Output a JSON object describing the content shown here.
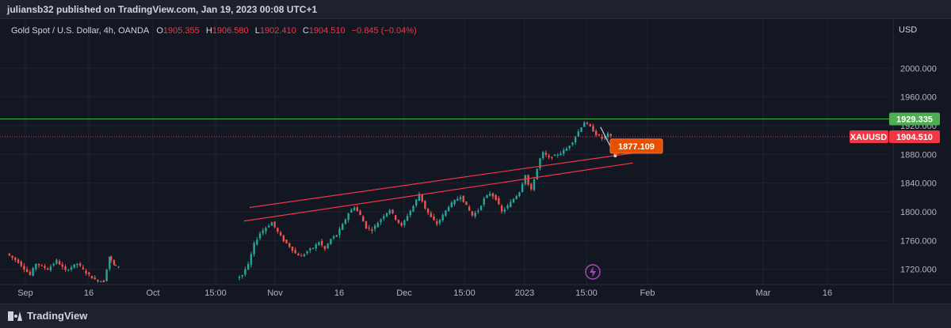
{
  "header": {
    "publisher_line": "juliansb32 published on TradingView.com, Jan 19, 2023 00:08 UTC+1"
  },
  "legend": {
    "symbol": "Gold Spot / U.S. Dollar, 4h, OANDA",
    "open_label": "O",
    "open_value": "1905.355",
    "high_label": "H",
    "high_value": "1906.580",
    "low_label": "L",
    "low_value": "1902.410",
    "close_label": "C",
    "close_value": "1904.510",
    "change": "−0.845 (−0.04%)"
  },
  "axis": {
    "currency": "USD",
    "price_ticks": [
      "2000.000",
      "1960.000",
      "1920.000",
      "1880.000",
      "1840.000",
      "1800.000",
      "1760.000",
      "1720.000"
    ],
    "time_labels": [
      "Sep",
      "16",
      "Oct",
      "15:00",
      "Nov",
      "16",
      "Dec",
      "15:00",
      "2023",
      "15:00",
      "Feb",
      "Mar",
      "16"
    ]
  },
  "tags": {
    "level_price": "1929.335",
    "symbol_tag": "XAUUSD",
    "last_price": "1904.510",
    "callout_price": "1877.109"
  },
  "footer": {
    "brand": "TradingView"
  },
  "colors": {
    "up": "#26a69a",
    "down": "#ef5350",
    "level_line": "#4caf50",
    "channel": "#f23645",
    "callout": "#e65100",
    "background": "#131722"
  },
  "icons": {
    "lightning": "lightning-icon",
    "brand": "tradingview-logo-icon"
  },
  "chart_data": {
    "type": "candlestick",
    "symbol": "XAUUSD",
    "timeframe": "4h",
    "y_range": [
      1700,
      2020
    ],
    "path": [
      [
        0,
        1742
      ],
      [
        4,
        1730
      ],
      [
        8,
        1712
      ],
      [
        10,
        1728
      ],
      [
        14,
        1720
      ],
      [
        17,
        1732
      ],
      [
        20,
        1718
      ],
      [
        24,
        1728
      ],
      [
        27,
        1715
      ],
      [
        30,
        1705
      ],
      [
        33,
        1703
      ],
      [
        34.5,
        1738
      ],
      [
        36,
        1726
      ],
      [
        38,
        1724
      ],
      [
        78,
        1708
      ],
      [
        80,
        1712
      ],
      [
        81,
        1720
      ],
      [
        82,
        1726
      ],
      [
        84,
        1755
      ],
      [
        86,
        1770
      ],
      [
        88,
        1778
      ],
      [
        90,
        1785
      ],
      [
        92,
        1772
      ],
      [
        94,
        1760
      ],
      [
        96,
        1752
      ],
      [
        98,
        1742
      ],
      [
        100,
        1738
      ],
      [
        102,
        1745
      ],
      [
        104,
        1750
      ],
      [
        106,
        1758
      ],
      [
        108,
        1748
      ],
      [
        110,
        1762
      ],
      [
        112,
        1768
      ],
      [
        114,
        1782
      ],
      [
        116,
        1798
      ],
      [
        118,
        1807
      ],
      [
        120,
        1795
      ],
      [
        122,
        1778
      ],
      [
        124,
        1775
      ],
      [
        126,
        1785
      ],
      [
        128,
        1795
      ],
      [
        130,
        1803
      ],
      [
        132,
        1790
      ],
      [
        134,
        1780
      ],
      [
        136,
        1795
      ],
      [
        138,
        1808
      ],
      [
        140,
        1825
      ],
      [
        142,
        1805
      ],
      [
        144,
        1792
      ],
      [
        146,
        1783
      ],
      [
        148,
        1795
      ],
      [
        150,
        1808
      ],
      [
        152,
        1815
      ],
      [
        154,
        1822
      ],
      [
        156,
        1808
      ],
      [
        158,
        1795
      ],
      [
        160,
        1802
      ],
      [
        162,
        1818
      ],
      [
        164,
        1826
      ],
      [
        166,
        1818
      ],
      [
        168,
        1800
      ],
      [
        170,
        1808
      ],
      [
        172,
        1818
      ],
      [
        174,
        1828
      ],
      [
        176,
        1852
      ],
      [
        177,
        1838
      ],
      [
        178,
        1830
      ],
      [
        179,
        1846
      ],
      [
        180,
        1860
      ],
      [
        181,
        1874
      ],
      [
        182,
        1882
      ],
      [
        184,
        1875
      ],
      [
        186,
        1878
      ],
      [
        188,
        1882
      ],
      [
        190,
        1888
      ],
      [
        192,
        1898
      ],
      [
        194,
        1912
      ],
      [
        196,
        1925
      ],
      [
        198,
        1918
      ],
      [
        200,
        1908
      ],
      [
        202,
        1902
      ],
      [
        204,
        1908
      ],
      [
        205,
        1904.51
      ]
    ],
    "horizontal_levels": [
      {
        "price": 1929.335,
        "style": "solid",
        "color": "#4caf50"
      },
      {
        "price": 1904.51,
        "style": "dotted",
        "color": "#f23645"
      }
    ],
    "channel_lines": [
      {
        "from": [
          82,
          1806
        ],
        "to": [
          214,
          1883
        ]
      },
      {
        "from": [
          80,
          1787
        ],
        "to": [
          212,
          1868
        ]
      }
    ],
    "arrow": {
      "from": [
        201,
        1918
      ],
      "to": [
        206,
        1878
      ]
    },
    "callout": {
      "price": 1877.109
    }
  }
}
